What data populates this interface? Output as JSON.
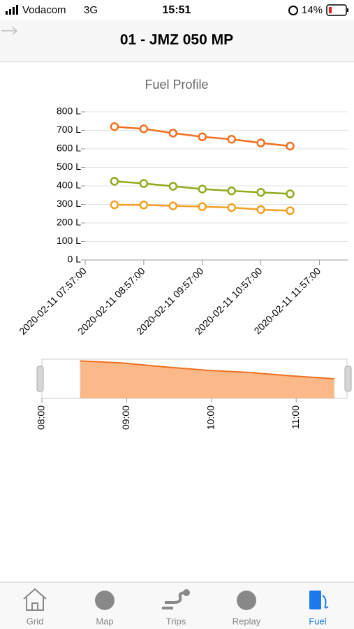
{
  "status_bar": {
    "carrier": "Vodacom",
    "network": "3G",
    "time": "15:51",
    "battery": "14%"
  },
  "header": {
    "title": "01 - JMZ 050 MP"
  },
  "chart_data": {
    "type": "line",
    "title": "Fuel Profile",
    "x": [
      "2020-02-11 08:27:00",
      "2020-02-11 08:57:00",
      "2020-02-11 09:27:00",
      "2020-02-11 09:57:00",
      "2020-02-11 10:27:00",
      "2020-02-11 10:57:00",
      "2020-02-11 11:27:00"
    ],
    "series": [
      {
        "color": "#f07020",
        "values": [
          720,
          708,
          685,
          665,
          652,
          632,
          615
        ]
      },
      {
        "color": "#8fac1c",
        "values": [
          425,
          413,
          398,
          383,
          373,
          365,
          357
        ]
      },
      {
        "color": "#f5a023",
        "values": [
          298,
          297,
          292,
          288,
          283,
          272,
          266
        ]
      }
    ],
    "xlim": [
      "2020-02-11 07:57:00",
      "2020-02-11 12:26:00"
    ],
    "xticks": [
      "2020-02-11 07:57:00",
      "2020-02-11 08:57:00",
      "2020-02-11 09:57:00",
      "2020-02-11 10:57:00",
      "2020-02-11 11:57:00"
    ],
    "ylim": [
      0,
      800
    ],
    "yticks": [
      {
        "value": 0,
        "label": "0 L"
      },
      {
        "value": 100,
        "label": "100 L"
      },
      {
        "value": 200,
        "label": "200 L"
      },
      {
        "value": 300,
        "label": "300 L"
      },
      {
        "value": 400,
        "label": "400 L"
      },
      {
        "value": 500,
        "label": "500 L"
      },
      {
        "value": 600,
        "label": "600 L"
      },
      {
        "value": 700,
        "label": "700 L"
      },
      {
        "value": 800,
        "label": "800 L"
      }
    ],
    "grid": true
  },
  "navigator": {
    "type": "area",
    "color": "#f07020",
    "xlim": [
      "2020-02-11 08:00:00",
      "2020-02-11 11:36:00"
    ],
    "ylim": [
      500,
      730
    ],
    "xticks": [
      {
        "value": "2020-02-11 08:00:00",
        "label": "08:00"
      },
      {
        "value": "2020-02-11 09:00:00",
        "label": "09:00"
      },
      {
        "value": "2020-02-11 10:00:00",
        "label": "10:00"
      },
      {
        "value": "2020-02-11 11:00:00",
        "label": "11:00"
      }
    ]
  },
  "tab_bar": {
    "tabs": [
      "Grid",
      "Map",
      "Trips",
      "Replay",
      "Fuel"
    ],
    "active": 4
  }
}
